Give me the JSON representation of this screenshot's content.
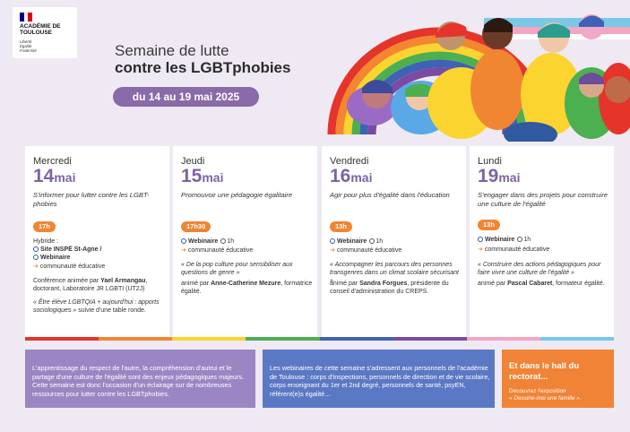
{
  "logo": {
    "name": "ACADÉMIE DE TOULOUSE",
    "motto": [
      "Liberté",
      "Égalité",
      "Fraternité"
    ],
    "flag_colors": [
      "#000091",
      "#ffffff",
      "#e1000f"
    ]
  },
  "header": {
    "title_line1": "Semaine de lutte",
    "title_line2": "contre les LGBTphobies",
    "dates": "du 14 au 19 mai 2025"
  },
  "days": [
    {
      "weekday": "Mercredi",
      "day": "14",
      "month": "mai",
      "theme": "S'informer pour lutter contre les LGBT-phobies",
      "time": "17h",
      "mode_prefix": "Hybride :",
      "site": "Site INSPÉ St-Agne /",
      "webinar": "Webinaire",
      "audience": "communauté éducative",
      "host_prefix": "Conférence animée par",
      "host_name": "Yael Armangau",
      "host_role": ", doctorant, Laboratoire JR LGBTI (UT2J)",
      "quote": "« Être élève LGBTQIA + aujourd'hui : apports sociologiques »",
      "quote_suffix": " suivie d'une table ronde."
    },
    {
      "weekday": "Jeudi",
      "day": "15",
      "month": "mai",
      "theme": "Promouvoir une pédagogie égalitaire",
      "time": "17h30",
      "webinar": "Webinaire",
      "duration": "1h",
      "audience": "communauté éducative",
      "quote": "« De la pop culture pour sensibiliser aux questions de genre »",
      "host_prefix": "animé par",
      "host_name": "Anne-Catherine Mezure",
      "host_role": ", formatrice égalité."
    },
    {
      "weekday": "Vendredi",
      "day": "16",
      "month": "mai",
      "theme": "Agir pour plus d'égalité dans l'éducation",
      "time": "13h",
      "webinar": "Webinaire",
      "duration": "1h",
      "audience": "communauté éducative",
      "quote": "« Accompagner les parcours des personnes transgenres dans un climat scolaire sécurisant »",
      "host_prefix": "animé par",
      "host_name": "Sandra Forgues",
      "host_role": ", présidente du conseil d'administration du CREPS."
    },
    {
      "weekday": "Lundi",
      "day": "19",
      "month": "mai",
      "theme": "S'engager dans des projets pour construire une culture de l'égalité",
      "time": "13h",
      "webinar": "Webinaire",
      "duration": "1h",
      "audience": "communauté éducative",
      "quote": "« Construire des actions pédagogiques pour faire vivre une culture de l'égalité »",
      "host_prefix": "animé par",
      "host_name": "Pascal Cabaret",
      "host_role": ", formateur égalité."
    }
  ],
  "rainbow_stripe": [
    "#e5352b",
    "#f3862f",
    "#fbd42f",
    "#4caf50",
    "#3f62b5",
    "#7b4aa3",
    "#f4a6c0",
    "#79c8e8"
  ],
  "footer": {
    "box1": "L'apprentissage du respect de l'autre, la compréhension d'autrui et le partage d'une culture de l'égalité sont des enjeux pédagogiques majeurs. Cette semaine est donc l'occasion d'un éclairage sur de nombreuses ressources pour lutter contre les LGBTphobies.",
    "box2": "Les webinaires de cette semaine s'adressent aux personnels de l'académie de Toulouse : corps d'inspections, personnels de direction et de vie scolaire, corps enseignant du 1er et 2nd degré, personnels de santé, psyEN, référent(e)s égalité...",
    "box3_heading": "Et dans le hall du rectorat...",
    "box3_line1": "Découvrez l'exposition",
    "box3_line2": "« Dessine-moi une famille »."
  }
}
